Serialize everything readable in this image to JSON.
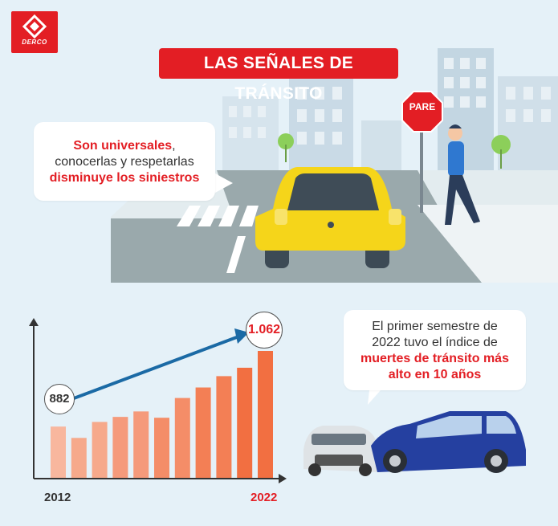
{
  "brand": {
    "logo_text": "DERCO",
    "color": "#e31e24"
  },
  "title": "LAS SEÑALES DE TRÁNSITO",
  "sign": {
    "text": "PARE"
  },
  "bubble1": {
    "line1_highlight": "Son universales",
    "line1_rest": ",",
    "line2": "conocerlas y respetarlas",
    "line3_highlight": "disminuye los siniestros"
  },
  "bubble2": {
    "line1": "El primer semestre de",
    "line2": "2022 tuvo el índice de",
    "line3_highlight": "muertes de tránsito más",
    "line4_highlight": "alto en 10 años"
  },
  "chart_data": {
    "type": "bar",
    "categories": [
      "2012",
      "",
      "",
      "",
      "",
      "",
      "",
      "",
      "",
      "",
      "2022"
    ],
    "values": [
      882,
      855,
      893,
      905,
      918,
      903,
      950,
      975,
      1002,
      1022,
      1062
    ],
    "annotations": {
      "first": "882",
      "last": "1.062"
    },
    "colors": [
      "#f8b79e",
      "#f6a98b",
      "#f6a98b",
      "#f59a7b",
      "#f59a7b",
      "#f48d68",
      "#f48d68",
      "#f37f55",
      "#f37f55",
      "#f26f41",
      "#f26f41"
    ]
  },
  "scene": {
    "road": "#9aa9ac",
    "sidewalk": "#e9f0f2",
    "car_yellow": "#f5d51a",
    "car_blue": "#2540a0"
  }
}
